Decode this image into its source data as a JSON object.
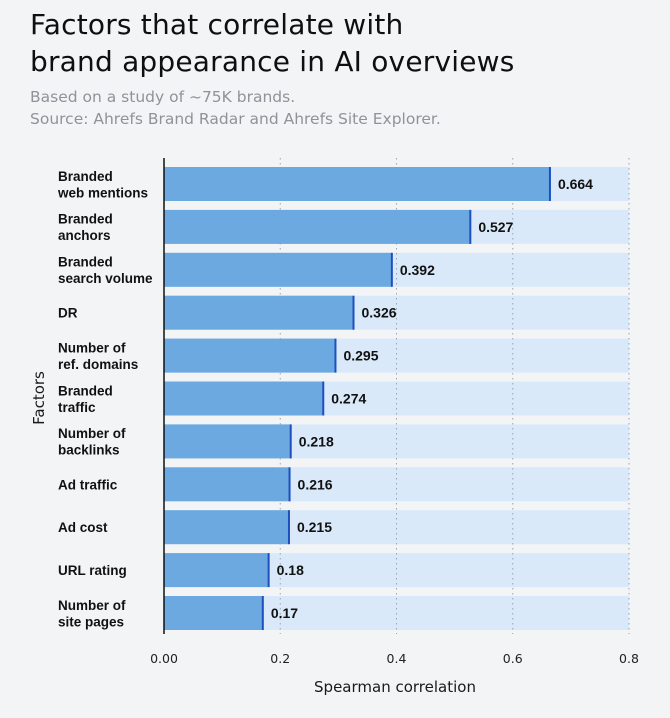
{
  "title_line1": "Factors that correlate with",
  "title_line2": "brand appearance in AI overviews",
  "subtitle_line1": "Based on a study of ~75K brands.",
  "subtitle_line2": "Source: Ahrefs Brand Radar and Ahrefs Site Explorer.",
  "colors": {
    "bar": "#6ba9e0",
    "bar_background": "#d9e9f9",
    "bar_end": "#1f4fbf",
    "page_background": "#f3f4f6"
  },
  "chart_data": {
    "type": "bar",
    "orientation": "horizontal",
    "categories": [
      [
        "Branded",
        "web mentions"
      ],
      [
        "Branded",
        "anchors"
      ],
      [
        "Branded",
        "search volume"
      ],
      [
        "DR"
      ],
      [
        "Number of",
        "ref. domains"
      ],
      [
        "Branded",
        "traffic"
      ],
      [
        "Number of",
        "backlinks"
      ],
      [
        "Ad traffic"
      ],
      [
        "Ad cost"
      ],
      [
        "URL rating"
      ],
      [
        "Number of",
        "site pages"
      ]
    ],
    "values": [
      0.664,
      0.527,
      0.392,
      0.326,
      0.295,
      0.274,
      0.218,
      0.216,
      0.215,
      0.18,
      0.17
    ],
    "value_labels": [
      "0.664",
      "0.527",
      "0.392",
      "0.326",
      "0.295",
      "0.274",
      "0.218",
      "0.216",
      "0.215",
      "0.18",
      "0.17"
    ],
    "xlabel": "Spearman correlation",
    "ylabel": "Factors",
    "xlim": [
      0,
      0.8
    ],
    "xticks": [
      0,
      0.2,
      0.4,
      0.6,
      0.8
    ],
    "xtick_labels": [
      "0.00",
      "0.2",
      "0.4",
      "0.6",
      "0.8"
    ],
    "grid": "vertical dotted",
    "legend": "none"
  }
}
